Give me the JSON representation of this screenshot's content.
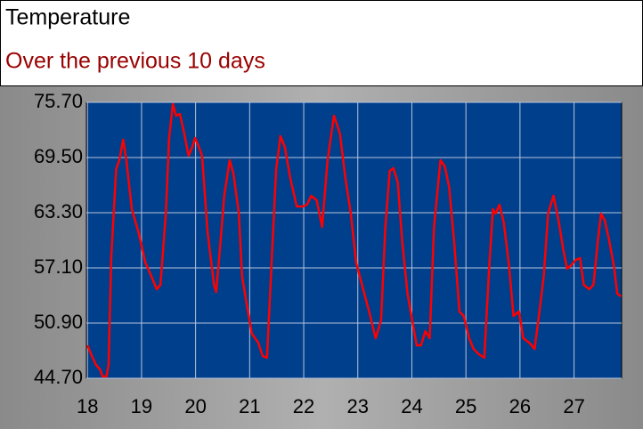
{
  "chart_data": {
    "type": "line",
    "title": "Temperature",
    "subtitle": "Over the previous 10 days",
    "x": [
      18.0,
      18.08,
      18.16,
      18.23,
      18.28,
      18.35,
      18.39,
      18.44,
      18.53,
      18.59,
      18.66,
      18.72,
      18.82,
      18.94,
      19.07,
      19.18,
      19.28,
      19.35,
      19.45,
      19.51,
      19.58,
      19.64,
      19.71,
      19.79,
      19.87,
      19.94,
      19.99,
      20.06,
      20.12,
      20.22,
      20.34,
      20.38,
      20.45,
      20.53,
      20.63,
      20.7,
      20.8,
      20.86,
      20.94,
      21.04,
      21.16,
      21.24,
      21.32,
      21.41,
      21.49,
      21.57,
      21.65,
      21.75,
      21.87,
      21.98,
      22.06,
      22.14,
      22.24,
      22.34,
      22.44,
      22.56,
      22.67,
      22.77,
      22.87,
      22.97,
      23.1,
      23.21,
      23.33,
      23.43,
      23.51,
      23.59,
      23.66,
      23.74,
      23.82,
      23.92,
      24.02,
      24.09,
      24.17,
      24.25,
      24.33,
      24.41,
      24.53,
      24.61,
      24.69,
      24.78,
      24.88,
      24.96,
      25.06,
      25.14,
      25.24,
      25.34,
      25.43,
      25.5,
      25.55,
      25.62,
      25.7,
      25.8,
      25.88,
      25.98,
      26.06,
      26.17,
      26.27,
      26.36,
      26.44,
      26.52,
      26.62,
      26.72,
      26.8,
      26.87,
      26.95,
      27.03,
      27.11,
      27.18,
      27.28,
      27.36,
      27.44,
      27.5,
      27.57,
      27.65,
      27.74,
      27.8,
      27.87
    ],
    "values": [
      48.4,
      47.2,
      46.2,
      45.7,
      44.9,
      44.9,
      46.2,
      58.2,
      68.2,
      69.2,
      71.5,
      69.2,
      63.7,
      61.2,
      57.7,
      56.2,
      54.7,
      55.2,
      63.2,
      71.7,
      75.5,
      74.2,
      74.4,
      72.2,
      69.7,
      70.7,
      71.7,
      70.7,
      69.7,
      61.2,
      55.2,
      54.4,
      59.2,
      65.2,
      69.2,
      67.7,
      63.2,
      56.2,
      53.2,
      49.7,
      48.7,
      47.2,
      47.0,
      58.2,
      68.2,
      71.9,
      70.7,
      67.2,
      64.0,
      64.0,
      64.2,
      65.2,
      64.7,
      61.7,
      69.2,
      74.2,
      72.2,
      67.2,
      63.2,
      57.7,
      54.7,
      52.2,
      49.2,
      51.2,
      61.7,
      68.0,
      68.3,
      66.7,
      60.2,
      54.2,
      50.7,
      48.4,
      48.4,
      50.0,
      49.2,
      61.7,
      69.2,
      68.5,
      66.2,
      60.2,
      52.2,
      51.7,
      49.2,
      48.0,
      47.4,
      47.0,
      57.2,
      63.7,
      63.2,
      64.2,
      62.2,
      57.2,
      51.7,
      52.2,
      49.2,
      48.7,
      48.0,
      52.2,
      56.2,
      63.2,
      65.2,
      62.2,
      59.2,
      57.0,
      57.4,
      58.0,
      58.2,
      55.2,
      54.7,
      55.2,
      60.2,
      63.2,
      62.4,
      60.2,
      57.2,
      54.2,
      53.9
    ],
    "color": "#ff0000",
    "background": "#003f8c",
    "grid": true,
    "xlim": [
      17.98,
      27.88
    ],
    "xticks": [
      18,
      19,
      20,
      21,
      22,
      23,
      24,
      25,
      26,
      27
    ],
    "ylim": [
      44.7,
      75.7
    ],
    "yticks": [
      {
        "value": 44.7,
        "label": "44.70"
      },
      {
        "value": 50.9,
        "label": "50.90"
      },
      {
        "value": 57.1,
        "label": "57.10"
      },
      {
        "value": 63.3,
        "label": "63.30"
      },
      {
        "value": 69.5,
        "label": "69.50"
      },
      {
        "value": 75.7,
        "label": "75.70"
      }
    ]
  }
}
